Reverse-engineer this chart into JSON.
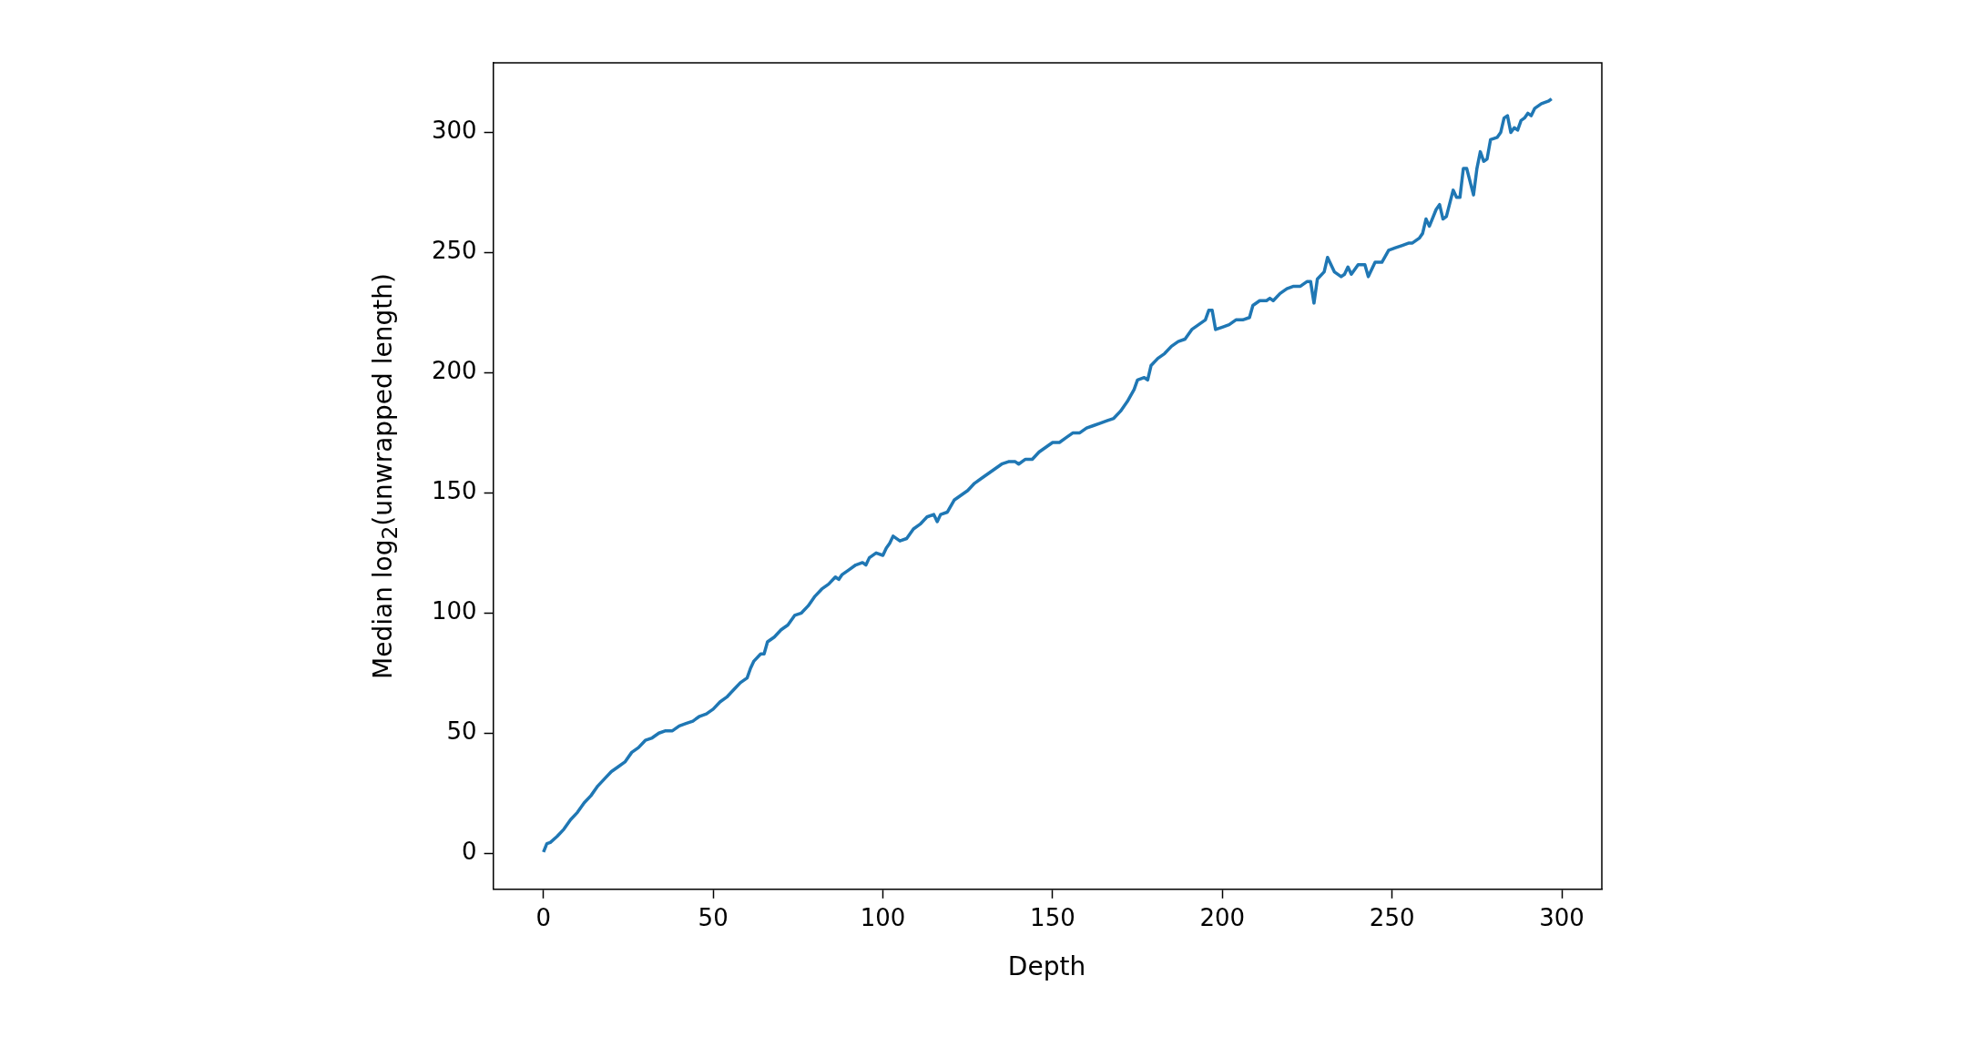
{
  "chart_data": {
    "type": "line",
    "xlabel": "Depth",
    "ylabel": "Median log$_{2}$(unwrapped length)",
    "xlim": [
      -14.8,
      311.8
    ],
    "ylim": [
      -15,
      329
    ],
    "xticks": [
      0,
      50,
      100,
      150,
      200,
      250,
      300
    ],
    "yticks": [
      0,
      50,
      100,
      150,
      200,
      250,
      300
    ],
    "grid": false,
    "legend": false,
    "marker": "none",
    "line_style": "solid",
    "series": [
      {
        "color": "#1f77b4",
        "x": [
          0,
          1,
          2,
          4,
          6,
          8,
          10,
          12,
          14,
          16,
          18,
          20,
          22,
          24,
          26,
          28,
          30,
          32,
          34,
          36,
          38,
          40,
          42,
          44,
          46,
          48,
          50,
          52,
          54,
          56,
          58,
          60,
          61,
          62,
          64,
          65,
          66,
          68,
          70,
          72,
          74,
          76,
          78,
          80,
          82,
          84,
          86,
          87,
          88,
          90,
          92,
          94,
          95,
          96,
          98,
          100,
          101,
          102,
          103,
          105,
          107,
          109,
          111,
          113,
          115,
          116,
          117,
          119,
          121,
          123,
          125,
          127,
          129,
          131,
          133,
          135,
          137,
          139,
          140,
          142,
          144,
          146,
          148,
          150,
          152,
          154,
          156,
          158,
          160,
          162,
          164,
          166,
          168,
          170,
          172,
          174,
          175,
          177,
          178,
          179,
          181,
          183,
          185,
          187,
          189,
          191,
          193,
          195,
          196,
          197,
          198,
          200,
          202,
          204,
          206,
          208,
          209,
          211,
          213,
          214,
          215,
          217,
          219,
          221,
          223,
          225,
          226,
          227,
          228,
          230,
          231,
          233,
          235,
          236,
          237,
          238,
          240,
          242,
          243,
          245,
          247,
          249,
          251,
          253,
          255,
          256,
          258,
          259,
          260,
          261,
          263,
          264,
          265,
          266,
          268,
          269,
          270,
          271,
          272,
          274,
          275,
          276,
          277,
          278,
          279,
          281,
          282,
          283,
          284,
          285,
          286,
          287,
          288,
          289,
          290,
          291,
          292,
          294,
          296,
          297
        ],
        "values": [
          0.5,
          4,
          4.5,
          7,
          10,
          14,
          17,
          21,
          24,
          28,
          31,
          34,
          36,
          38,
          42,
          44,
          47,
          48,
          50,
          51,
          51,
          53,
          54,
          55,
          57,
          58,
          60,
          63,
          65,
          68,
          71,
          73,
          77,
          80,
          83,
          83,
          88,
          90,
          93,
          95,
          99,
          100,
          103,
          107,
          110,
          112,
          115,
          114,
          116,
          118,
          120,
          121,
          120,
          123,
          125,
          124,
          127,
          129,
          132,
          130,
          131,
          135,
          137,
          140,
          141,
          138,
          141,
          142,
          147,
          149,
          151,
          154,
          156,
          158,
          160,
          162,
          163,
          163,
          162,
          164,
          164,
          167,
          169,
          171,
          171,
          173,
          175,
          175,
          177,
          178,
          179,
          180,
          181,
          184,
          188,
          193,
          197,
          198,
          197,
          203,
          206,
          208,
          211,
          213,
          214,
          218,
          220,
          222,
          226,
          226,
          218,
          219,
          220,
          222,
          222,
          223,
          228,
          230,
          230,
          231,
          230,
          233,
          235,
          236,
          236,
          238,
          238,
          229,
          239,
          242,
          248,
          242,
          240,
          241,
          244,
          241,
          245,
          245,
          240,
          246,
          246,
          251,
          252,
          253,
          254,
          254,
          256,
          258,
          264,
          261,
          268,
          270,
          264,
          265,
          276,
          273,
          273,
          285,
          285,
          274,
          285,
          292,
          288,
          289,
          297,
          298,
          300,
          306,
          307,
          300,
          302,
          301,
          305,
          306,
          308,
          307,
          310,
          312,
          313,
          314
        ]
      }
    ]
  }
}
